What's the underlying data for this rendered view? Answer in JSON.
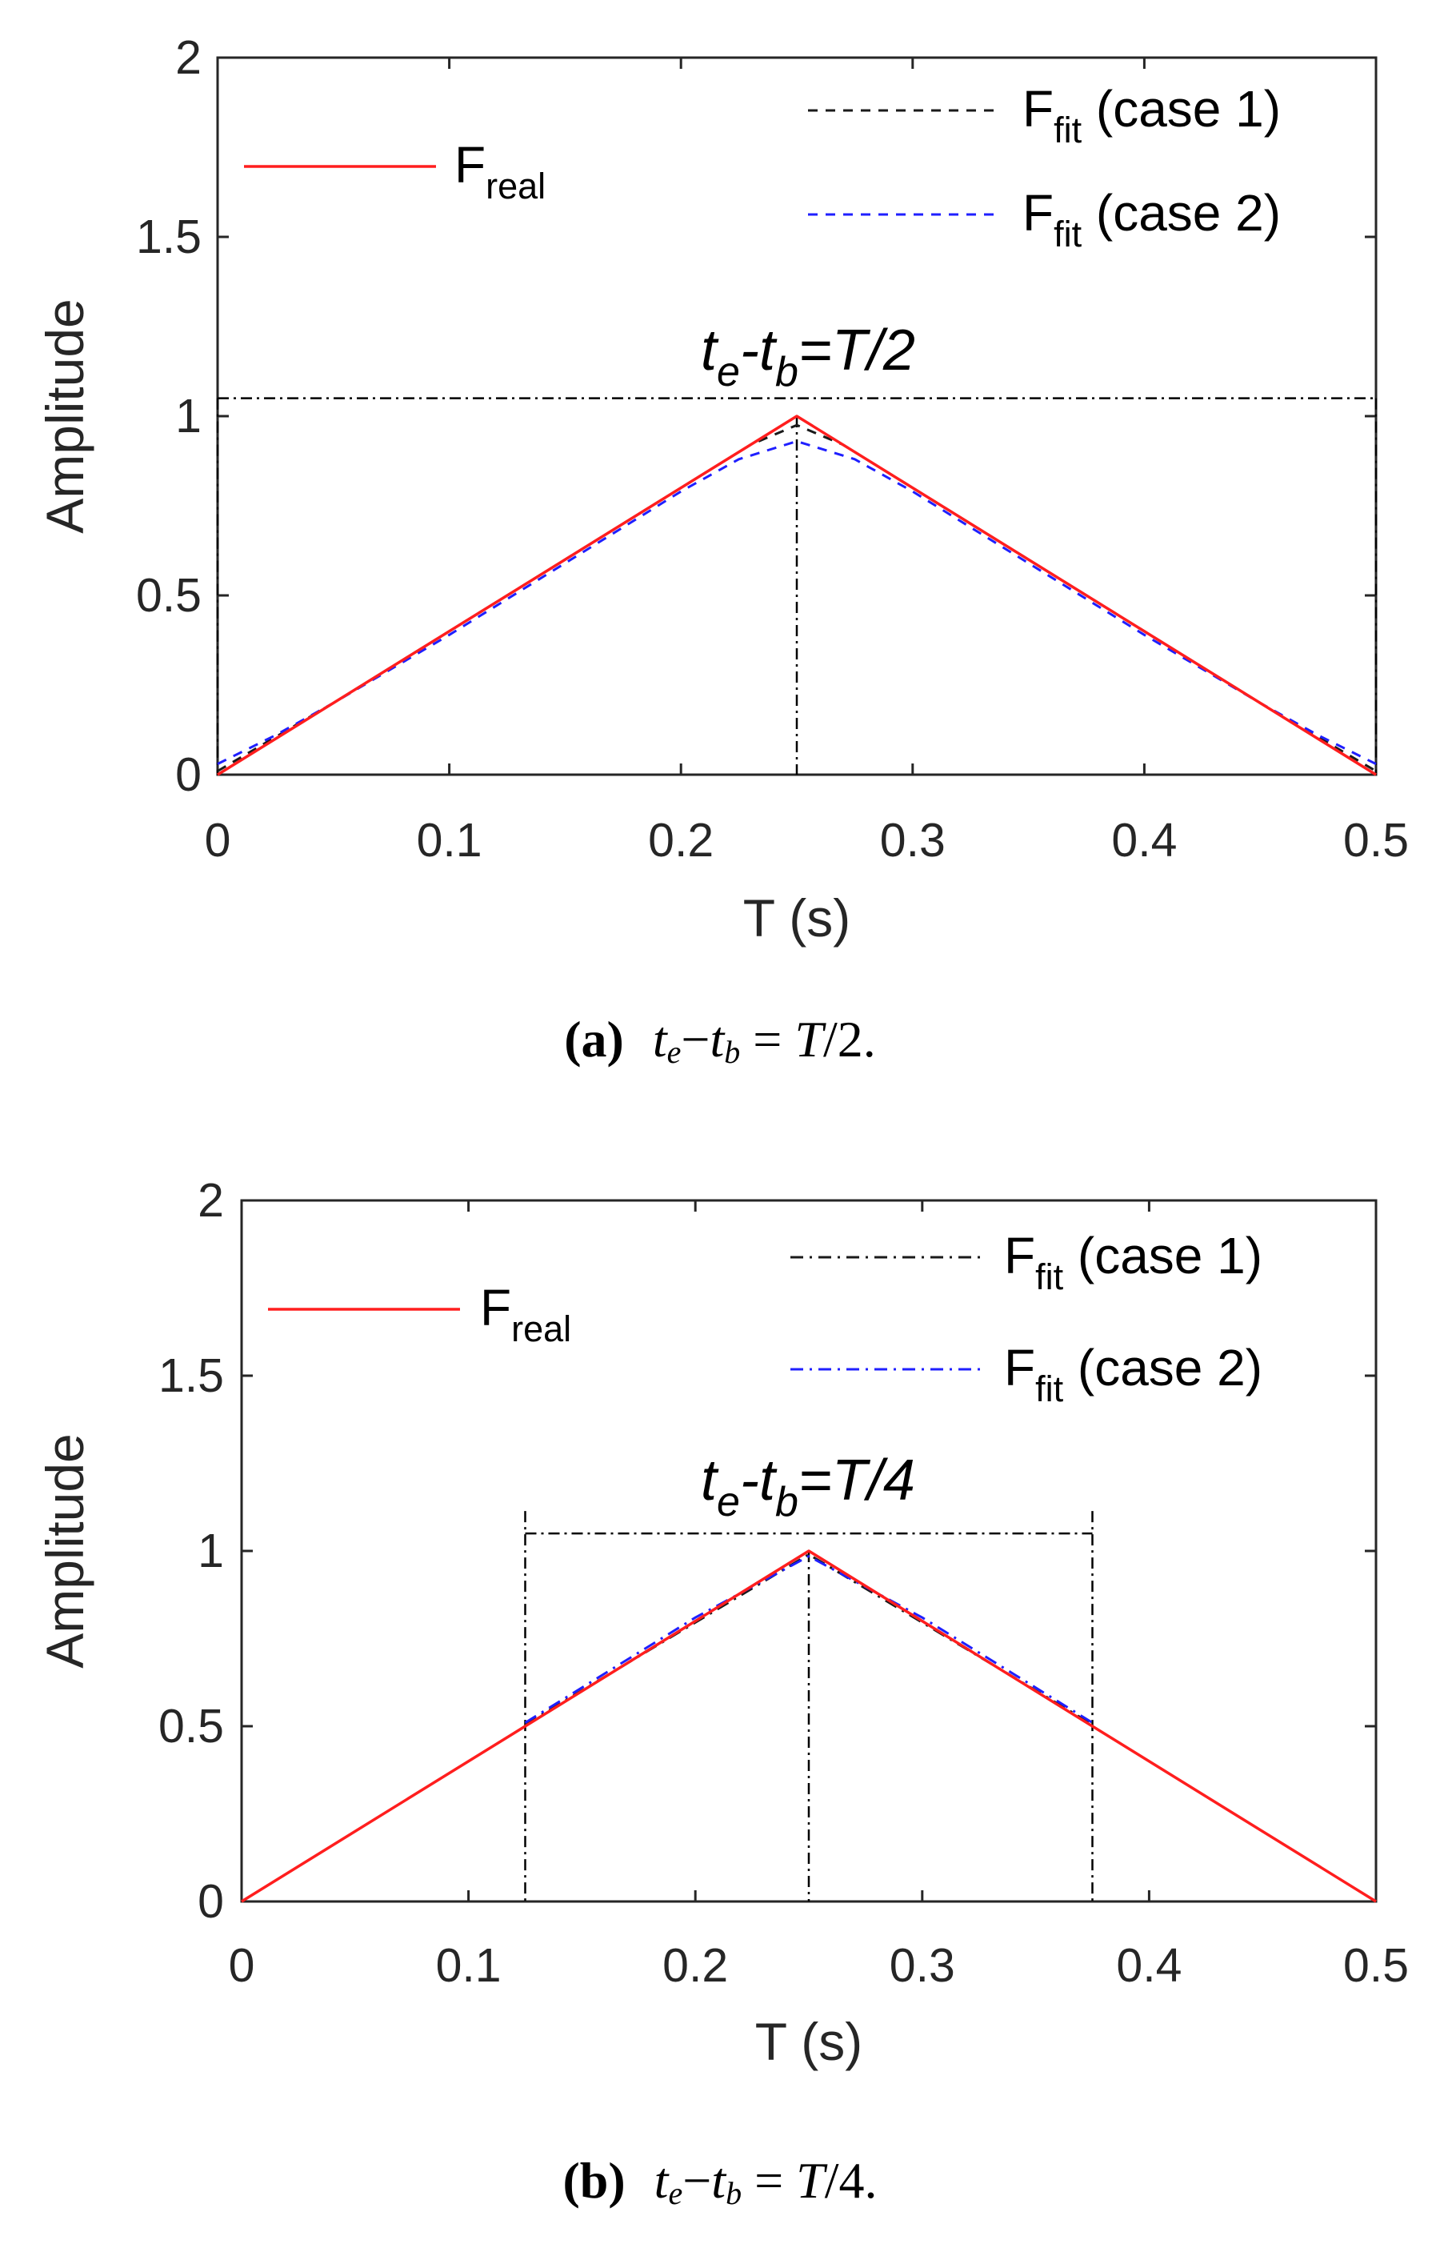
{
  "colors": {
    "real": "#ff1e1e",
    "case1": "#1a1a1a",
    "case2": "#1f1fff",
    "guide": "#000000",
    "axis": "#262626"
  },
  "chart_data": [
    {
      "type": "line",
      "panel_label": "(a)",
      "caption": {
        "label": "(a)",
        "te": "t",
        "te_sub": "e",
        "dash": "−",
        "tb": "t",
        "tb_sub": "b",
        "eq": " = ",
        "T": "T",
        "tail": "/2."
      },
      "xlabel": "T (s)",
      "ylabel": "Amplitude",
      "xlim": [
        0,
        0.5
      ],
      "ylim": [
        0,
        2
      ],
      "xticks": [
        "0",
        "0.1",
        "0.2",
        "0.3",
        "0.4",
        "0.5"
      ],
      "xtick_values": [
        0,
        0.1,
        0.2,
        0.3,
        0.4,
        0.5
      ],
      "yticks": [
        "0",
        "0.5",
        "1",
        "1.5",
        "2"
      ],
      "ytick_values": [
        0,
        0.5,
        1,
        1.5,
        2
      ],
      "annotation": {
        "t1": "t",
        "s1": "e",
        "mid": "-t",
        "s2": "b",
        "tail": "=T/2"
      },
      "window": {
        "x_start": 0,
        "x_end": 0.5,
        "x_peak": 0.25,
        "y_level": 1.05
      },
      "legend": [
        {
          "main": "F",
          "sub": "real",
          "rest": ""
        },
        {
          "main": "F",
          "sub": "fit",
          "rest": " (case 1)"
        },
        {
          "main": "F",
          "sub": "fit",
          "rest": " (case 2)"
        }
      ],
      "series": [
        {
          "name": "F_real",
          "style": "solid",
          "color": "#ff1e1e",
          "x": [
            0,
            0.25,
            0.5
          ],
          "y": [
            0,
            1,
            0
          ]
        },
        {
          "name": "F_fit (case 1)",
          "style": "dash",
          "color": "#1a1a1a",
          "x": [
            0,
            0.05,
            0.1,
            0.15,
            0.2,
            0.23,
            0.25,
            0.27,
            0.3,
            0.35,
            0.4,
            0.45,
            0.5
          ],
          "y": [
            0.01,
            0.2,
            0.4,
            0.6,
            0.8,
            0.92,
            0.975,
            0.92,
            0.8,
            0.6,
            0.4,
            0.2,
            0.01
          ]
        },
        {
          "name": "F_fit (case 2)",
          "style": "dash",
          "color": "#1f1fff",
          "x": [
            0,
            0.025,
            0.05,
            0.1,
            0.15,
            0.2,
            0.225,
            0.25,
            0.275,
            0.3,
            0.35,
            0.4,
            0.45,
            0.475,
            0.5
          ],
          "y": [
            0.03,
            0.11,
            0.2,
            0.39,
            0.59,
            0.79,
            0.88,
            0.93,
            0.88,
            0.79,
            0.59,
            0.39,
            0.2,
            0.11,
            0.03
          ]
        }
      ]
    },
    {
      "type": "line",
      "panel_label": "(b)",
      "caption": {
        "label": "(b)",
        "te": "t",
        "te_sub": "e",
        "dash": "−",
        "tb": "t",
        "tb_sub": "b",
        "eq": " = ",
        "T": "T",
        "tail": "/4."
      },
      "xlabel": "T (s)",
      "ylabel": "Amplitude",
      "xlim": [
        0,
        0.5
      ],
      "ylim": [
        0,
        2
      ],
      "xticks": [
        "0",
        "0.1",
        "0.2",
        "0.3",
        "0.4",
        "0.5"
      ],
      "xtick_values": [
        0,
        0.1,
        0.2,
        0.3,
        0.4,
        0.5
      ],
      "yticks": [
        "0",
        "0.5",
        "1",
        "1.5",
        "2"
      ],
      "ytick_values": [
        0,
        0.5,
        1,
        1.5,
        2
      ],
      "annotation": {
        "t1": "t",
        "s1": "e",
        "mid": "-t",
        "s2": "b",
        "tail": "=T/4"
      },
      "window": {
        "x_start": 0.125,
        "x_end": 0.375,
        "x_peak": 0.25,
        "y_level": 1.05
      },
      "legend": [
        {
          "main": "F",
          "sub": "real",
          "rest": ""
        },
        {
          "main": "F",
          "sub": "fit",
          "rest": " (case 1)"
        },
        {
          "main": "F",
          "sub": "fit",
          "rest": " (case 2)"
        }
      ],
      "series": [
        {
          "name": "F_real",
          "style": "solid",
          "color": "#ff1e1e",
          "x": [
            0,
            0.25,
            0.5
          ],
          "y": [
            0,
            1,
            0
          ]
        },
        {
          "name": "F_fit (case 1)",
          "style": "dashdot",
          "color": "#1a1a1a",
          "x": [
            0.125,
            0.25,
            0.375
          ],
          "y": [
            0.505,
            0.99,
            0.505
          ]
        },
        {
          "name": "F_fit (case 2)",
          "style": "dashdot",
          "color": "#1f1fff",
          "x": [
            0.125,
            0.2,
            0.25,
            0.3,
            0.375
          ],
          "y": [
            0.51,
            0.81,
            0.985,
            0.81,
            0.51
          ]
        }
      ]
    }
  ]
}
